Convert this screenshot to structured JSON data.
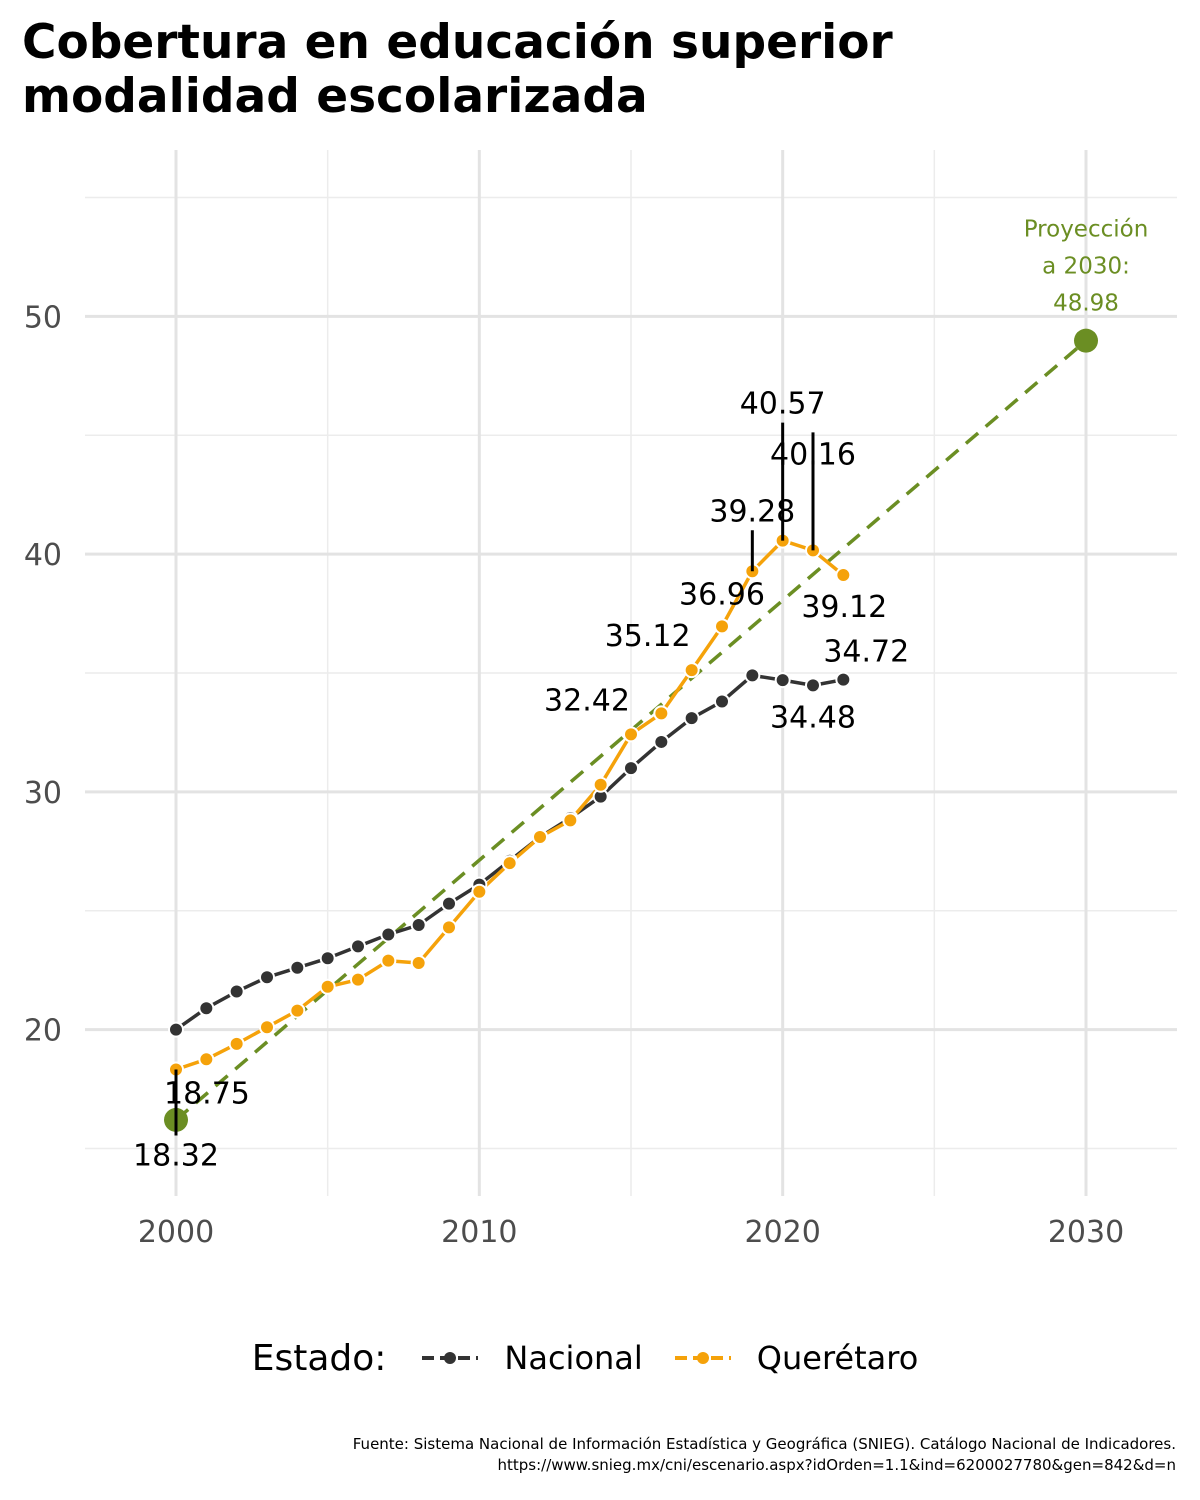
{
  "chart_data": {
    "type": "line",
    "title": [
      "Cobertura en educación superior",
      "modalidad escolarizada"
    ],
    "xlabel": "",
    "ylabel": "",
    "xlim": [
      1997,
      2033
    ],
    "ylim": [
      13,
      57
    ],
    "x_ticks": [
      2000,
      2010,
      2020,
      2030
    ],
    "y_ticks": [
      20,
      30,
      40,
      50
    ],
    "grid": true,
    "legend": {
      "title": "Estado:",
      "position": "bottom"
    },
    "series": [
      {
        "name": "Nacional",
        "color": "#333333",
        "x": [
          2000,
          2001,
          2002,
          2003,
          2004,
          2005,
          2006,
          2007,
          2008,
          2009,
          2010,
          2011,
          2012,
          2013,
          2014,
          2015,
          2016,
          2017,
          2018,
          2019,
          2020,
          2021,
          2022
        ],
        "y": [
          20.0,
          20.9,
          21.6,
          22.2,
          22.6,
          23.0,
          23.5,
          24.0,
          24.4,
          25.3,
          26.1,
          27.1,
          28.1,
          28.9,
          29.8,
          31.0,
          32.1,
          33.1,
          33.8,
          34.9,
          34.7,
          34.48,
          34.72
        ]
      },
      {
        "name": "Querétaro",
        "color": "#f5a20a",
        "x": [
          2000,
          2001,
          2002,
          2003,
          2004,
          2005,
          2006,
          2007,
          2008,
          2009,
          2010,
          2011,
          2012,
          2013,
          2014,
          2015,
          2016,
          2017,
          2018,
          2019,
          2020,
          2021,
          2022
        ],
        "y": [
          18.32,
          18.75,
          19.4,
          20.1,
          20.8,
          21.8,
          22.1,
          22.9,
          22.8,
          24.3,
          25.8,
          27.0,
          28.1,
          28.8,
          30.3,
          32.42,
          33.3,
          35.12,
          36.96,
          39.28,
          40.57,
          40.16,
          39.12
        ]
      }
    ],
    "projection": {
      "color": "#6b8e23",
      "start": {
        "x": 2000,
        "y": 16.2
      },
      "end": {
        "x": 2030,
        "y": 48.98
      },
      "label": [
        "Proyección",
        "a 2030:",
        "48.98"
      ]
    },
    "annotations": [
      {
        "text": "18.75",
        "x": 2000,
        "y": 18.75,
        "pos": "below-right"
      },
      {
        "text": "18.32",
        "x": 2000,
        "y": 18.32,
        "pos": "below"
      },
      {
        "text": "32.42",
        "x": 2015,
        "y": 32.42,
        "pos": "above-left"
      },
      {
        "text": "35.12",
        "x": 2017,
        "y": 35.12,
        "pos": "above-left"
      },
      {
        "text": "36.96",
        "x": 2018,
        "y": 36.96,
        "pos": "above"
      },
      {
        "text": "39.28",
        "x": 2019,
        "y": 39.28,
        "pos": "above-high"
      },
      {
        "text": "40.57",
        "x": 2020,
        "y": 40.57,
        "pos": "above-high"
      },
      {
        "text": "40.16",
        "x": 2021,
        "y": 40.16,
        "pos": "above-high"
      },
      {
        "text": "39.12",
        "x": 2022,
        "y": 39.12,
        "pos": "below"
      },
      {
        "text": "34.72",
        "x": 2022,
        "y": 34.72,
        "pos": "above"
      },
      {
        "text": "34.48",
        "x": 2021,
        "y": 34.48,
        "pos": "below"
      }
    ]
  },
  "caption": [
    "Fuente: Sistema Nacional de Información Estadística y Geográfica (SNIEG). Catálogo Nacional de Indicadores.",
    "https://www.snieg.mx/cni/escenario.aspx?idOrden=1.1&ind=6200027780&gen=842&d=n"
  ]
}
